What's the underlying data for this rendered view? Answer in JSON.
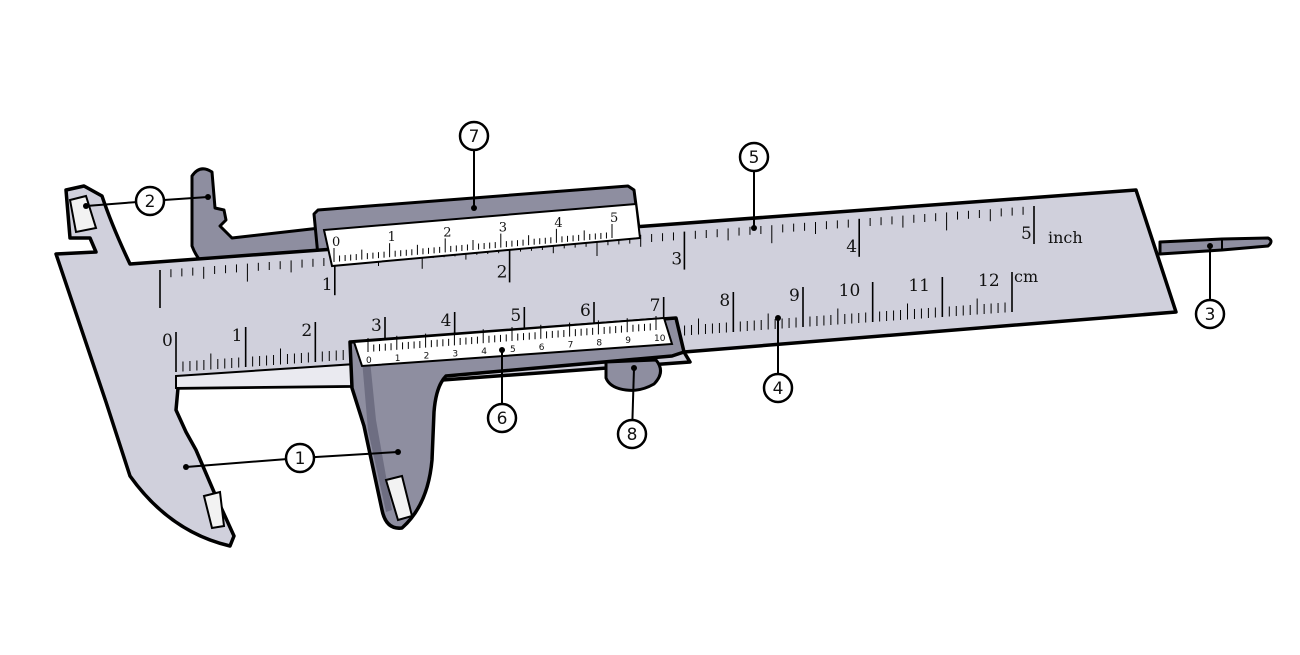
{
  "diagram": {
    "callouts": [
      {
        "id": "1",
        "label": "1"
      },
      {
        "id": "2",
        "label": "2"
      },
      {
        "id": "3",
        "label": "3"
      },
      {
        "id": "4",
        "label": "4"
      },
      {
        "id": "5",
        "label": "5"
      },
      {
        "id": "6",
        "label": "6"
      },
      {
        "id": "7",
        "label": "7"
      },
      {
        "id": "8",
        "label": "8"
      }
    ],
    "inch_scale": {
      "unit": "inch",
      "labels": [
        "1",
        "2",
        "3",
        "4",
        "5"
      ]
    },
    "cm_scale": {
      "unit": "cm",
      "labels": [
        "0",
        "1",
        "2",
        "3",
        "4",
        "5",
        "6",
        "7",
        "8",
        "9",
        "10",
        "11",
        "12"
      ]
    },
    "vernier_cm_scale": {
      "labels": [
        "0",
        "1",
        "2",
        "3",
        "4",
        "5",
        "6",
        "7",
        "8",
        "9",
        "10"
      ]
    },
    "vernier_inch_scale": {
      "labels": [
        "0",
        "1",
        "2",
        "3",
        "4",
        "5"
      ]
    },
    "colors": {
      "beam": "#d0d0dc",
      "jaw": "#8e8ea0",
      "jaw_dark": "#6e6e82",
      "scale_plate": "#ffffff",
      "outline": "#000000"
    }
  }
}
